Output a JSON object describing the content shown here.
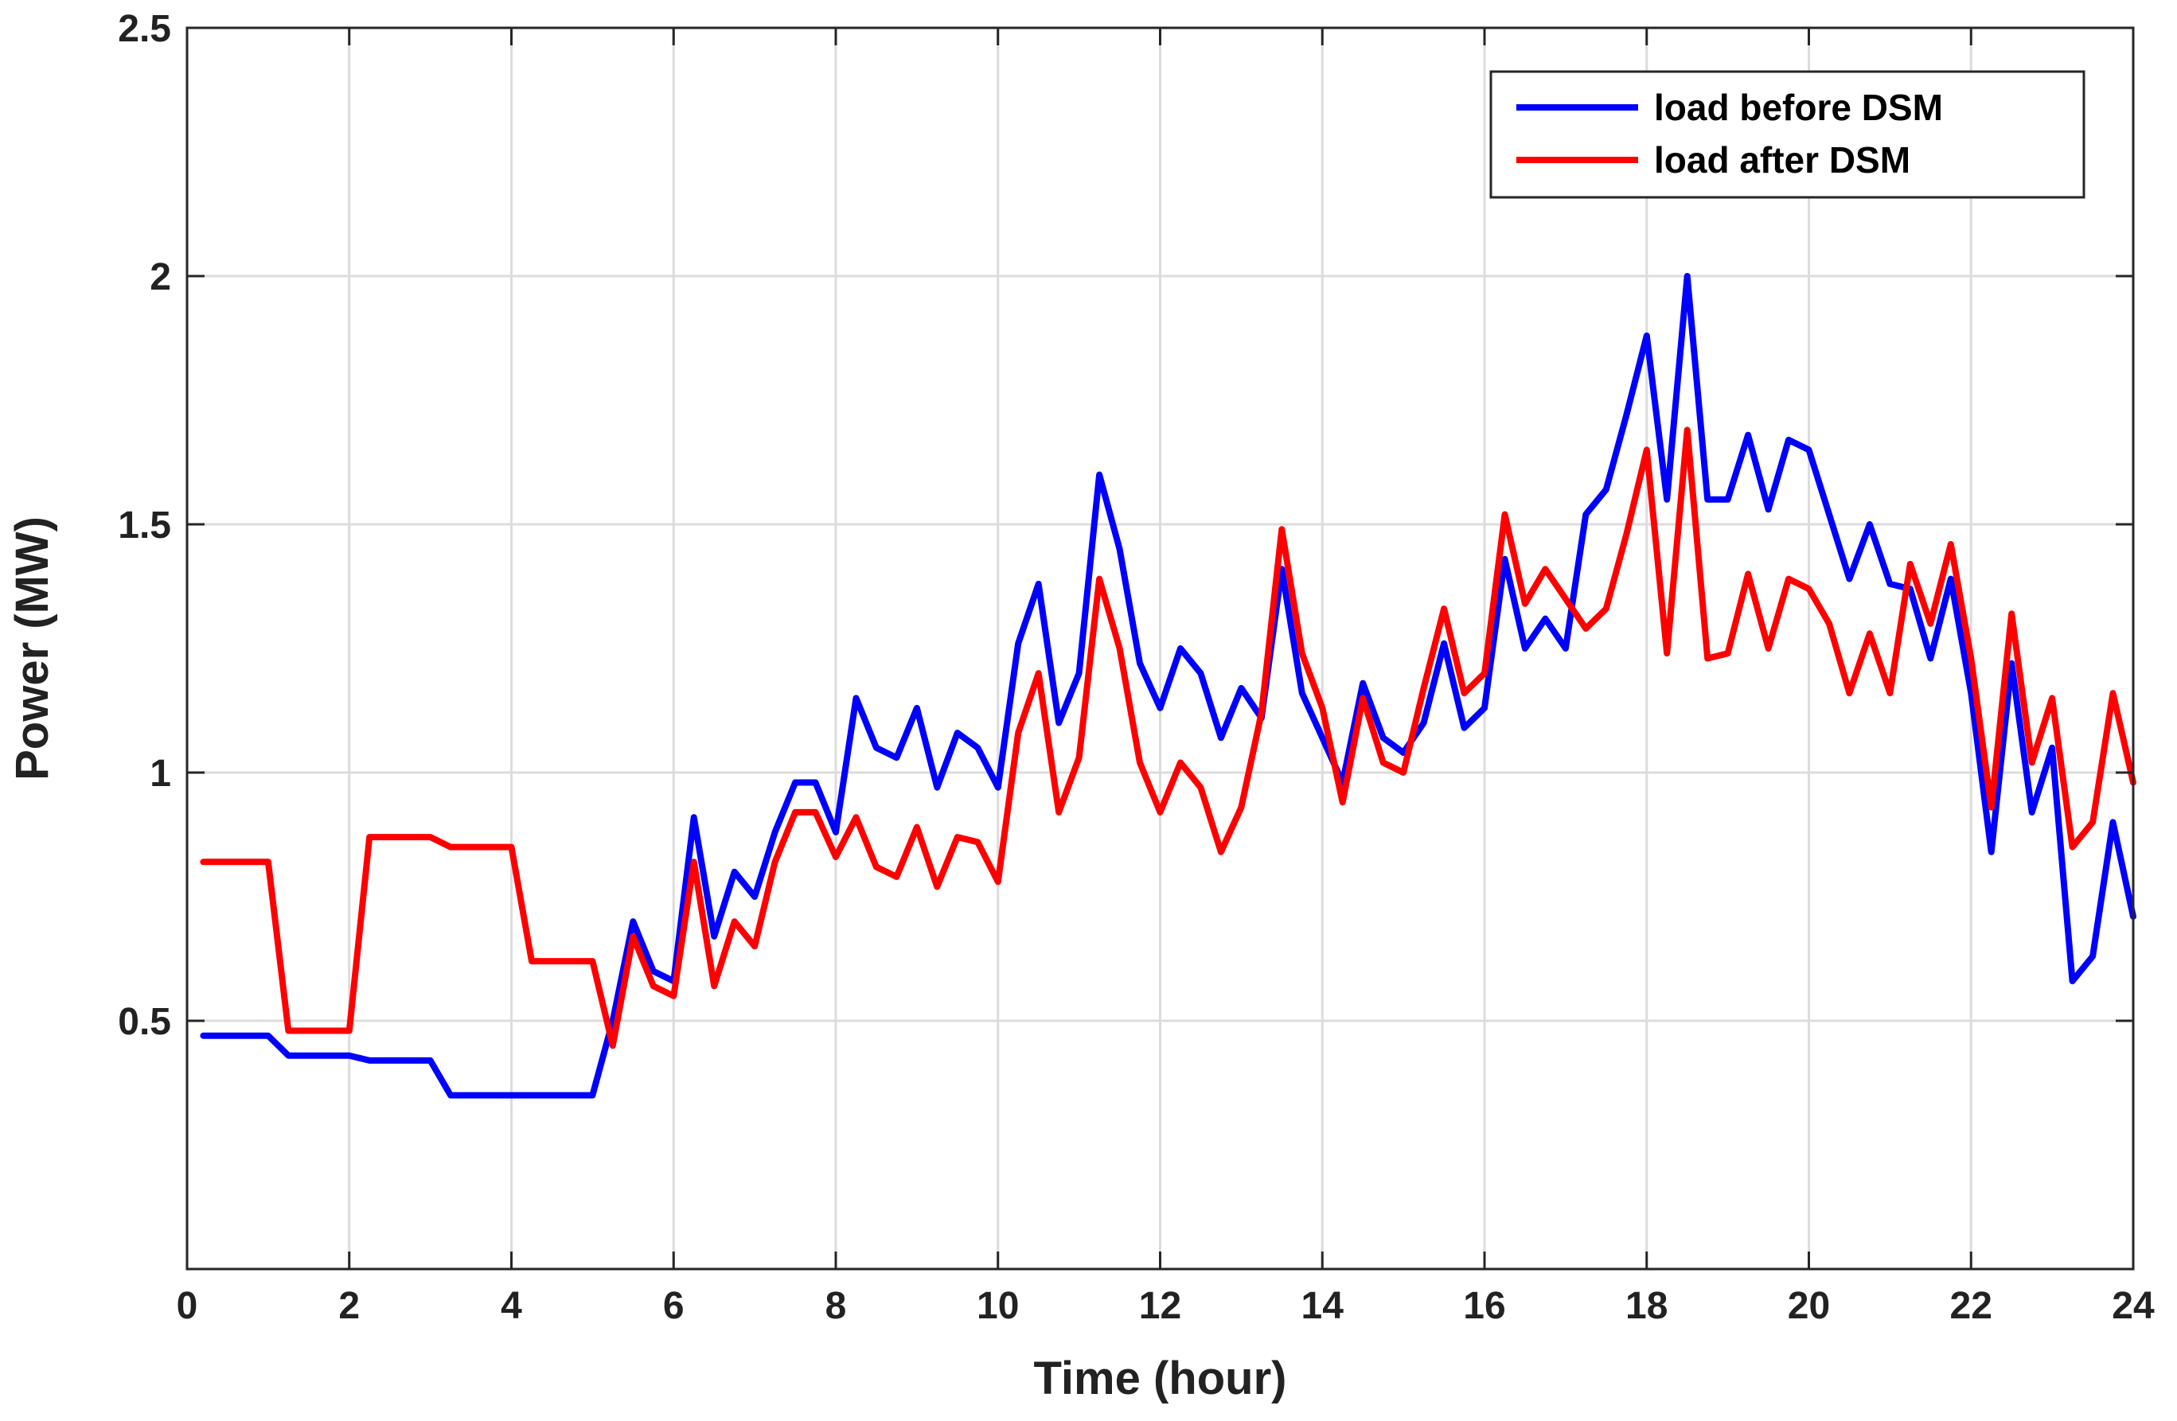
{
  "chart_data": {
    "type": "line",
    "title": "",
    "xlabel": "Time (hour)",
    "ylabel": "Power (MW)",
    "xlim": [
      0,
      24
    ],
    "ylim": [
      0,
      2.5
    ],
    "xticks": [
      0,
      2,
      4,
      6,
      8,
      10,
      12,
      14,
      16,
      18,
      20,
      22,
      24
    ],
    "yticks": [
      0.5,
      1,
      1.5,
      2,
      2.5
    ],
    "xtick_labels": [
      "0",
      "2",
      "4",
      "6",
      "8",
      "10",
      "12",
      "14",
      "16",
      "18",
      "20",
      "22",
      "24"
    ],
    "ytick_labels": [
      "0.5",
      "1",
      "1.5",
      "2",
      "2.5"
    ],
    "grid": true,
    "legend_position": "top-right",
    "series": [
      {
        "name": "load before DSM",
        "color": "#0000ff",
        "x": [
          0.2,
          0.5,
          0.75,
          1,
          1.25,
          1.5,
          1.75,
          2,
          2.25,
          2.5,
          2.75,
          3,
          3.25,
          3.5,
          3.75,
          4,
          4.25,
          4.5,
          4.75,
          5,
          5.25,
          5.5,
          5.75,
          6,
          6.25,
          6.5,
          6.75,
          7,
          7.25,
          7.5,
          7.75,
          8,
          8.25,
          8.5,
          8.75,
          9,
          9.25,
          9.5,
          9.75,
          10,
          10.25,
          10.5,
          10.75,
          11,
          11.25,
          11.5,
          11.75,
          12,
          12.25,
          12.5,
          12.75,
          13,
          13.25,
          13.5,
          13.75,
          14,
          14.25,
          14.5,
          14.75,
          15,
          15.25,
          15.5,
          15.75,
          16,
          16.25,
          16.5,
          16.75,
          17,
          17.25,
          17.5,
          17.75,
          18,
          18.25,
          18.5,
          18.75,
          19,
          19.25,
          19.5,
          19.75,
          20,
          20.25,
          20.5,
          20.75,
          21,
          21.25,
          21.5,
          21.75,
          22,
          22.25,
          22.5,
          22.75,
          23,
          23.25,
          23.5,
          23.75,
          24
        ],
        "values": [
          0.47,
          0.47,
          0.47,
          0.47,
          0.43,
          0.43,
          0.43,
          0.43,
          0.42,
          0.42,
          0.42,
          0.42,
          0.35,
          0.35,
          0.35,
          0.35,
          0.35,
          0.35,
          0.35,
          0.35,
          0.5,
          0.7,
          0.6,
          0.58,
          0.91,
          0.67,
          0.8,
          0.75,
          0.88,
          0.98,
          0.98,
          0.88,
          1.15,
          1.05,
          1.03,
          1.13,
          0.97,
          1.08,
          1.05,
          0.97,
          1.26,
          1.38,
          1.1,
          1.2,
          1.6,
          1.45,
          1.22,
          1.13,
          1.25,
          1.2,
          1.07,
          1.17,
          1.11,
          1.41,
          1.16,
          1.07,
          0.98,
          1.18,
          1.07,
          1.04,
          1.1,
          1.26,
          1.09,
          1.13,
          1.43,
          1.25,
          1.31,
          1.25,
          1.52,
          1.57,
          1.72,
          1.88,
          1.55,
          2.0,
          1.55,
          1.55,
          1.68,
          1.53,
          1.67,
          1.65,
          1.52,
          1.39,
          1.5,
          1.38,
          1.37,
          1.23,
          1.39,
          1.16,
          0.84,
          1.22,
          0.92,
          1.05,
          0.58,
          0.63,
          0.9,
          0.71
        ]
      },
      {
        "name": "load after DSM",
        "color": "#ff0000",
        "x": [
          0.2,
          0.5,
          0.75,
          1,
          1.25,
          1.5,
          1.75,
          2,
          2.25,
          2.5,
          2.75,
          3,
          3.25,
          3.5,
          3.75,
          4,
          4.25,
          4.5,
          4.75,
          5,
          5.25,
          5.5,
          5.75,
          6,
          6.25,
          6.5,
          6.75,
          7,
          7.25,
          7.5,
          7.75,
          8,
          8.25,
          8.5,
          8.75,
          9,
          9.25,
          9.5,
          9.75,
          10,
          10.25,
          10.5,
          10.75,
          11,
          11.25,
          11.5,
          11.75,
          12,
          12.25,
          12.5,
          12.75,
          13,
          13.25,
          13.5,
          13.75,
          14,
          14.25,
          14.5,
          14.75,
          15,
          15.25,
          15.5,
          15.75,
          16,
          16.25,
          16.5,
          16.75,
          17,
          17.25,
          17.5,
          17.75,
          18,
          18.25,
          18.5,
          18.75,
          19,
          19.25,
          19.5,
          19.75,
          20,
          20.25,
          20.5,
          20.75,
          21,
          21.25,
          21.5,
          21.75,
          22,
          22.25,
          22.5,
          22.75,
          23,
          23.25,
          23.5,
          23.75,
          24
        ],
        "values": [
          0.82,
          0.82,
          0.82,
          0.82,
          0.48,
          0.48,
          0.48,
          0.48,
          0.87,
          0.87,
          0.87,
          0.87,
          0.85,
          0.85,
          0.85,
          0.85,
          0.62,
          0.62,
          0.62,
          0.62,
          0.45,
          0.67,
          0.57,
          0.55,
          0.82,
          0.57,
          0.7,
          0.65,
          0.82,
          0.92,
          0.92,
          0.83,
          0.91,
          0.81,
          0.79,
          0.89,
          0.77,
          0.87,
          0.86,
          0.78,
          1.08,
          1.2,
          0.92,
          1.03,
          1.39,
          1.25,
          1.02,
          0.92,
          1.02,
          0.97,
          0.84,
          0.93,
          1.12,
          1.49,
          1.24,
          1.13,
          0.94,
          1.15,
          1.02,
          1.0,
          1.17,
          1.33,
          1.16,
          1.2,
          1.52,
          1.34,
          1.41,
          1.35,
          1.29,
          1.33,
          1.48,
          1.65,
          1.24,
          1.69,
          1.23,
          1.24,
          1.4,
          1.25,
          1.39,
          1.37,
          1.3,
          1.16,
          1.28,
          1.16,
          1.42,
          1.3,
          1.46,
          1.23,
          0.93,
          1.32,
          1.02,
          1.15,
          0.85,
          0.9,
          1.16,
          0.98
        ]
      }
    ]
  }
}
